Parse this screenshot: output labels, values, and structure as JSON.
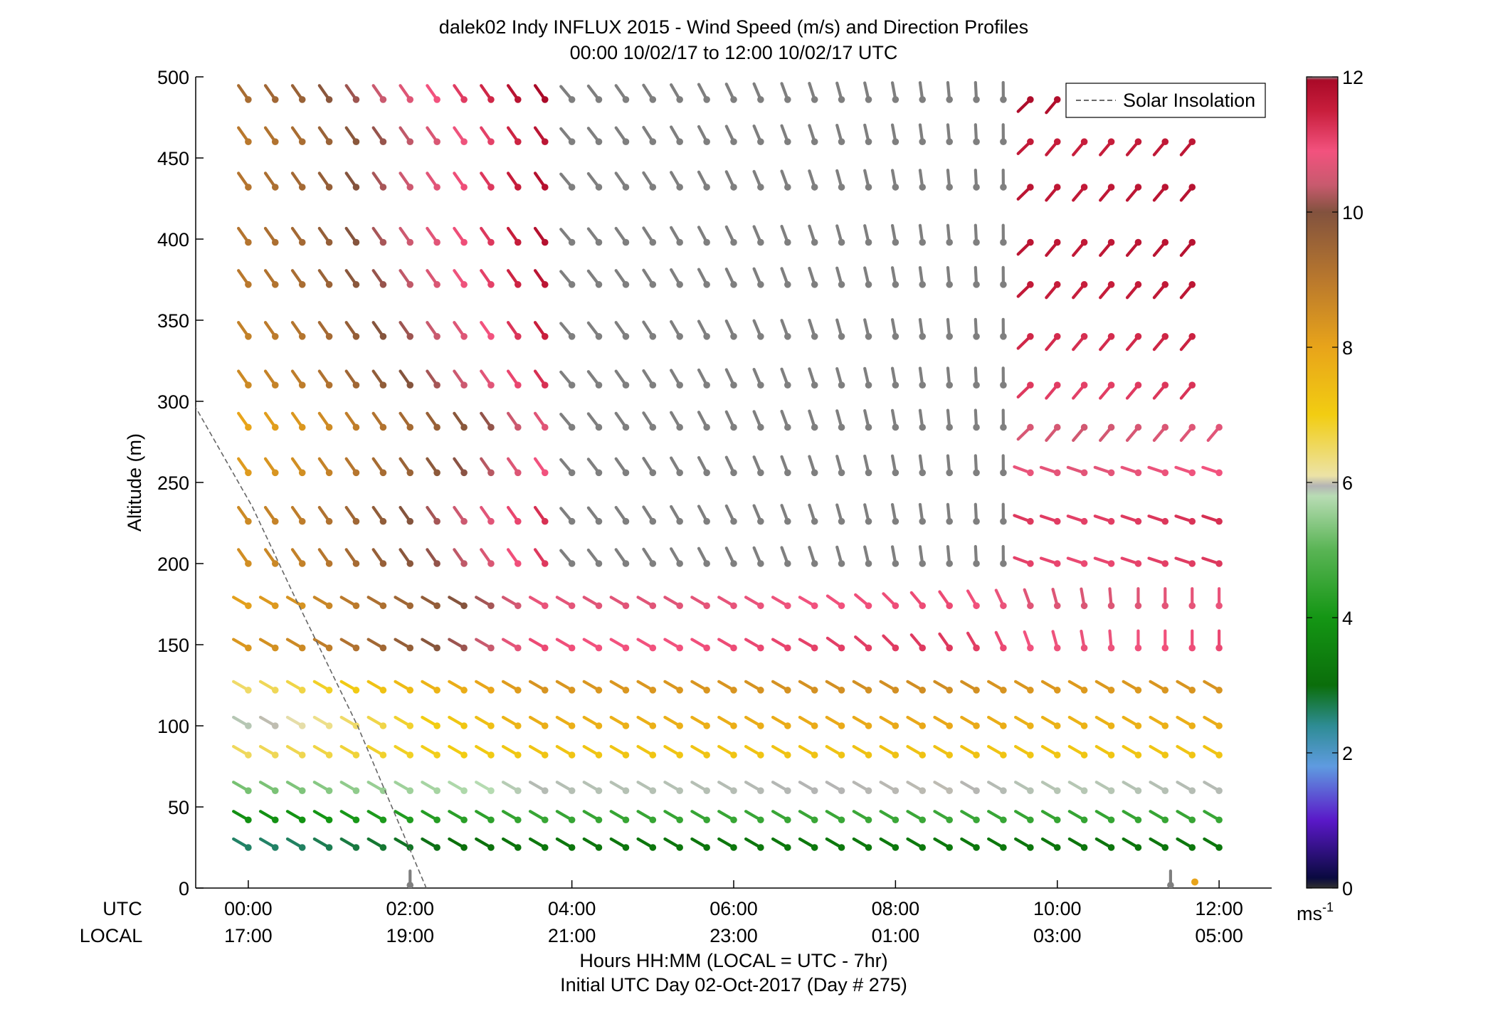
{
  "chart_data": {
    "type": "scatter",
    "subtype": "wind-barb-profile",
    "title": "dalek02 Indy INFLUX 2015 - Wind Speed (m/s) and Direction Profiles",
    "subtitle": "00:00 10/02/17 to 12:00 10/02/17  UTC",
    "ylabel": "Altitude (m)",
    "xlabel": "Hours HH:MM  (LOCAL = UTC - 7hr)",
    "xlabel2": "Initial UTC Day 02-Oct-2017 (Day # 275)",
    "row_label_utc": "UTC",
    "row_label_local": "LOCAL",
    "x_ticks_utc": [
      "00:00",
      "02:00",
      "04:00",
      "06:00",
      "08:00",
      "10:00",
      "12:00"
    ],
    "x_ticks_local": [
      "17:00",
      "19:00",
      "21:00",
      "23:00",
      "01:00",
      "03:00",
      "05:00"
    ],
    "xlim_hours": [
      -0.65,
      12.65
    ],
    "ylim": [
      0,
      500
    ],
    "y_ticks": [
      0,
      50,
      100,
      150,
      200,
      250,
      300,
      350,
      400,
      450,
      500
    ],
    "legend": {
      "entry": "Solar Insolation",
      "style": "dashed",
      "position": "top-right"
    },
    "colorbar": {
      "range": [
        0,
        12
      ],
      "ticks": [
        0,
        2,
        4,
        6,
        8,
        10,
        12
      ],
      "unit": "ms",
      "unit_exp": "-1",
      "stops": [
        {
          "v": 0.0,
          "c": "#2f2f2f"
        },
        {
          "v": 0.15,
          "c": "#0a0a40"
        },
        {
          "v": 1.0,
          "c": "#5a18c8"
        },
        {
          "v": 1.8,
          "c": "#5f9be0"
        },
        {
          "v": 2.4,
          "c": "#2e8c94"
        },
        {
          "v": 3.0,
          "c": "#0b6e0b"
        },
        {
          "v": 4.0,
          "c": "#149614"
        },
        {
          "v": 5.0,
          "c": "#59b454"
        },
        {
          "v": 5.8,
          "c": "#b8dcb4"
        },
        {
          "v": 5.95,
          "c": "#b4b4b4"
        },
        {
          "v": 6.1,
          "c": "#ece3a6"
        },
        {
          "v": 7.0,
          "c": "#f2cd12"
        },
        {
          "v": 8.0,
          "c": "#e8a41a"
        },
        {
          "v": 9.0,
          "c": "#b9782d"
        },
        {
          "v": 10.0,
          "c": "#82523e"
        },
        {
          "v": 10.4,
          "c": "#c85a6e"
        },
        {
          "v": 10.9,
          "c": "#f2527e"
        },
        {
          "v": 11.5,
          "c": "#c81e3c"
        },
        {
          "v": 11.95,
          "c": "#aa0a28"
        },
        {
          "v": 12.0,
          "c": "#8c8c8c"
        }
      ]
    },
    "colors": {
      "missing": "#7f7f7f",
      "axis": "#000000",
      "insolation": "#666666"
    },
    "insolation_line": {
      "x": [
        -0.67,
        0.05,
        0.55,
        1.35,
        2.2
      ],
      "y": [
        298,
        235,
        182,
        100,
        0
      ]
    },
    "speed_profile": {
      "altitudes": [
        25,
        42,
        60,
        82,
        100,
        122,
        148,
        174,
        200,
        226,
        256,
        284,
        310,
        340,
        372,
        398,
        432,
        460,
        486
      ],
      "speeds": [
        3.2,
        4.5,
        5.9,
        7.2,
        7.7,
        8.3,
        10.9,
        10.7,
        11.1,
        11.2,
        10.8,
        10.6,
        11.2,
        11.4,
        11.6,
        11.7,
        11.7,
        11.6,
        11.9
      ]
    },
    "speed_by_hour": {
      "hours": [
        0,
        0.7,
        1.5,
        2.2,
        3.0,
        3.6,
        4.2,
        5.4,
        7.1,
        8.8,
        9.6,
        10.4,
        11.2,
        12.0
      ],
      "offsets": [
        -2.6,
        -2.3,
        -1.6,
        -1.1,
        -0.5,
        0.1,
        0.0,
        0.0,
        0.2,
        0.3,
        0.0,
        -0.1,
        0.0,
        0.1
      ]
    },
    "direction_model": {
      "low_level_from_deg": 300,
      "high_level_morning_from_deg": 325,
      "high_level_evening_from_deg": 220
    },
    "missing_regions": [
      {
        "from_hour": 4.0,
        "to_hour": 9.4,
        "above_altitude": 190,
        "speed_below": 12.6,
        "note": "grey barbs"
      },
      {
        "from_hour": 11.7,
        "to_hour": 12.3,
        "above_altitude": 300
      }
    ],
    "annotations": [
      {
        "type": "missing-marker",
        "x_hour": 2.0,
        "altitude": 0
      },
      {
        "type": "missing-marker",
        "x_hour": 11.4,
        "altitude": 0
      },
      {
        "type": "dot",
        "x_hour": 11.7,
        "altitude": 2,
        "color": "#e8a41a"
      }
    ],
    "grid": false
  }
}
